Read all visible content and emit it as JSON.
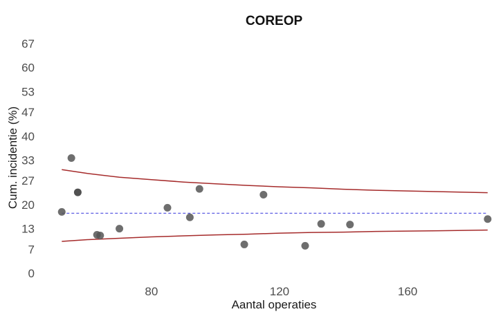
{
  "chart_data": {
    "type": "scatter",
    "title": "COREOP",
    "xlabel": "Aantal operaties",
    "ylabel": "Cum. incidentie (%)",
    "xlim": [
      50,
      187
    ],
    "ylim": [
      -2,
      70
    ],
    "x_ticks": [
      80,
      120,
      160
    ],
    "x_tick_labels": [
      "80",
      "120",
      "160"
    ],
    "y_ticks": [
      0,
      7,
      13,
      20,
      27,
      33,
      40,
      47,
      53,
      60,
      67
    ],
    "y_tick_labels": [
      "0",
      "7",
      "13",
      "20",
      "27",
      "33",
      "40",
      "47",
      "53",
      "60",
      "67"
    ],
    "grid": false,
    "legend": "none",
    "points": [
      {
        "x": 52,
        "y": 17.9
      },
      {
        "x": 55,
        "y": 33.6
      },
      {
        "x": 57,
        "y": 23.6
      },
      {
        "x": 63,
        "y": 11.2
      },
      {
        "x": 64,
        "y": 11.0
      },
      {
        "x": 70,
        "y": 13.0
      },
      {
        "x": 85,
        "y": 19.1
      },
      {
        "x": 92,
        "y": 16.3
      },
      {
        "x": 95,
        "y": 24.6
      },
      {
        "x": 109,
        "y": 8.4
      },
      {
        "x": 115,
        "y": 22.9
      },
      {
        "x": 128,
        "y": 8.0
      },
      {
        "x": 133,
        "y": 14.4
      },
      {
        "x": 142,
        "y": 14.2
      },
      {
        "x": 185,
        "y": 15.8
      }
    ],
    "reference_line": {
      "name": "mean",
      "y": 17.5,
      "style": "dashed",
      "color": "#4a4ae0"
    },
    "control_limits": {
      "color": "#a52a2a",
      "upper": [
        [
          52,
          30.2
        ],
        [
          60,
          29.1
        ],
        [
          70,
          28.0
        ],
        [
          80,
          27.3
        ],
        [
          90,
          26.6
        ],
        [
          100,
          26.1
        ],
        [
          110,
          25.6
        ],
        [
          120,
          25.2
        ],
        [
          130,
          24.9
        ],
        [
          140,
          24.5
        ],
        [
          150,
          24.2
        ],
        [
          160,
          24.0
        ],
        [
          170,
          23.8
        ],
        [
          185,
          23.5
        ]
      ],
      "lower": [
        [
          52,
          9.3
        ],
        [
          60,
          9.8
        ],
        [
          70,
          10.2
        ],
        [
          80,
          10.6
        ],
        [
          90,
          10.9
        ],
        [
          100,
          11.2
        ],
        [
          110,
          11.4
        ],
        [
          120,
          11.7
        ],
        [
          130,
          11.9
        ],
        [
          140,
          12.0
        ],
        [
          150,
          12.2
        ],
        [
          160,
          12.3
        ],
        [
          170,
          12.4
        ],
        [
          185,
          12.6
        ]
      ]
    },
    "point_color": "#555555",
    "highlight_point_color": "#333333"
  }
}
